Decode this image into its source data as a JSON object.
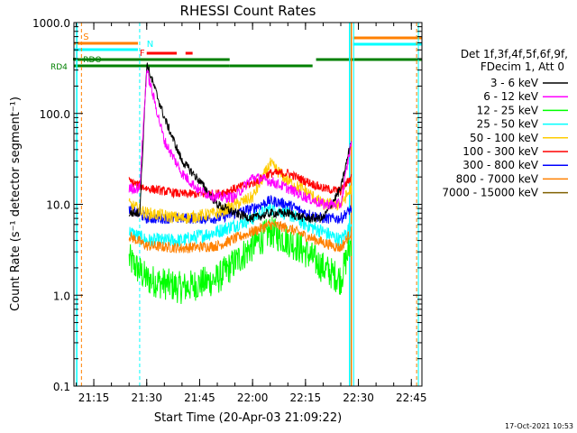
{
  "chart_data": {
    "type": "line",
    "title": "RHESSI Count Rates",
    "xlabel": "Start Time (20-Apr-03 21:09:22)",
    "ylabel": "Count Rate (s⁻¹ detector segment⁻¹)",
    "yscale": "log",
    "ylim": [
      0.1,
      1000
    ],
    "xlim": [
      "21:09:22",
      "22:48:00"
    ],
    "x_ticks": [
      "21:15",
      "21:30",
      "21:45",
      "22:00",
      "22:15",
      "22:30",
      "22:45"
    ],
    "y_ticks": [
      "0.1",
      "1.0",
      "10.0",
      "100.0",
      "1000.0"
    ],
    "legend": {
      "position": "right",
      "header": [
        "Det 1f,3f,4f,5f,6f,9f,",
        "FDecim 1, Att 0"
      ]
    },
    "series": [
      {
        "name": "3 - 6 keV",
        "color": "#000000",
        "x": [
          "21:25",
          "21:28",
          "21:30",
          "21:35",
          "21:40",
          "21:45",
          "21:50",
          "21:55",
          "22:00",
          "22:05",
          "22:10",
          "22:15",
          "22:20",
          "22:25",
          "22:28"
        ],
        "values": [
          8,
          8,
          350,
          90,
          30,
          18,
          10,
          8,
          7,
          8,
          8,
          7,
          7,
          15,
          50
        ]
      },
      {
        "name": "6 - 12 keV",
        "color": "#ff00ff",
        "x": [
          "21:25",
          "21:28",
          "21:30",
          "21:35",
          "21:40",
          "21:45",
          "21:50",
          "21:55",
          "22:00",
          "22:05",
          "22:10",
          "22:15",
          "22:20",
          "22:25",
          "22:28"
        ],
        "values": [
          15,
          15,
          300,
          50,
          22,
          14,
          12,
          12,
          20,
          18,
          15,
          12,
          10,
          10,
          50
        ]
      },
      {
        "name": "12 - 25 keV",
        "color": "#00ff00",
        "x": [
          "21:25",
          "21:30",
          "21:40",
          "21:50",
          "22:00",
          "22:05",
          "22:10",
          "22:15",
          "22:20",
          "22:25",
          "22:28"
        ],
        "values": [
          2.5,
          1.5,
          1.2,
          1.5,
          3.5,
          5,
          4,
          3,
          2,
          1.5,
          4
        ]
      },
      {
        "name": "25 - 50 keV",
        "color": "#00ffff",
        "x": [
          "21:25",
          "21:30",
          "21:40",
          "21:50",
          "22:00",
          "22:05",
          "22:10",
          "22:15",
          "22:20",
          "22:25",
          "22:28"
        ],
        "values": [
          5,
          4,
          4,
          5,
          7,
          9,
          8,
          6,
          5,
          4,
          6
        ]
      },
      {
        "name": "50 - 100 keV",
        "color": "#ffcc00",
        "x": [
          "21:25",
          "21:30",
          "21:40",
          "21:50",
          "22:00",
          "22:05",
          "22:10",
          "22:15",
          "22:20",
          "22:25",
          "22:28"
        ],
        "values": [
          10,
          8,
          7,
          8,
          12,
          28,
          18,
          14,
          10,
          10,
          15
        ]
      },
      {
        "name": "100 - 300 keV",
        "color": "#ff0000",
        "x": [
          "21:25",
          "21:30",
          "21:40",
          "21:50",
          "22:00",
          "22:05",
          "22:10",
          "22:15",
          "22:20",
          "22:25",
          "22:28"
        ],
        "values": [
          18,
          15,
          13,
          13,
          17,
          22,
          22,
          18,
          15,
          14,
          20
        ]
      },
      {
        "name": "300 - 800 keV",
        "color": "#0000ff",
        "x": [
          "21:25",
          "21:30",
          "21:40",
          "21:50",
          "22:00",
          "22:05",
          "22:10",
          "22:15",
          "22:20",
          "22:25",
          "22:28"
        ],
        "values": [
          9,
          7,
          7,
          7,
          9,
          11,
          10,
          8,
          7,
          7,
          9
        ]
      },
      {
        "name": "800 - 7000 keV",
        "color": "#ff8000",
        "x": [
          "21:25",
          "21:30",
          "21:40",
          "21:50",
          "22:00",
          "22:05",
          "22:10",
          "22:15",
          "22:20",
          "22:25",
          "22:28"
        ],
        "values": [
          4.5,
          3.5,
          3.3,
          3.5,
          5,
          6,
          5.5,
          4.5,
          3.8,
          3.3,
          5
        ]
      },
      {
        "name": "7000 - 15000 keV",
        "color": "#806000",
        "x": [],
        "values": []
      }
    ],
    "annotations": [
      {
        "label": "S",
        "color": "#ff8000"
      },
      {
        "label": "N",
        "color": "#00ffff"
      },
      {
        "label": "F",
        "color": "#ff0000"
      },
      {
        "label": "RDO",
        "color": "#008000"
      },
      {
        "label": "RD4",
        "color": "#008000"
      }
    ],
    "footer_date": "17-Oct-2021 10:53"
  }
}
